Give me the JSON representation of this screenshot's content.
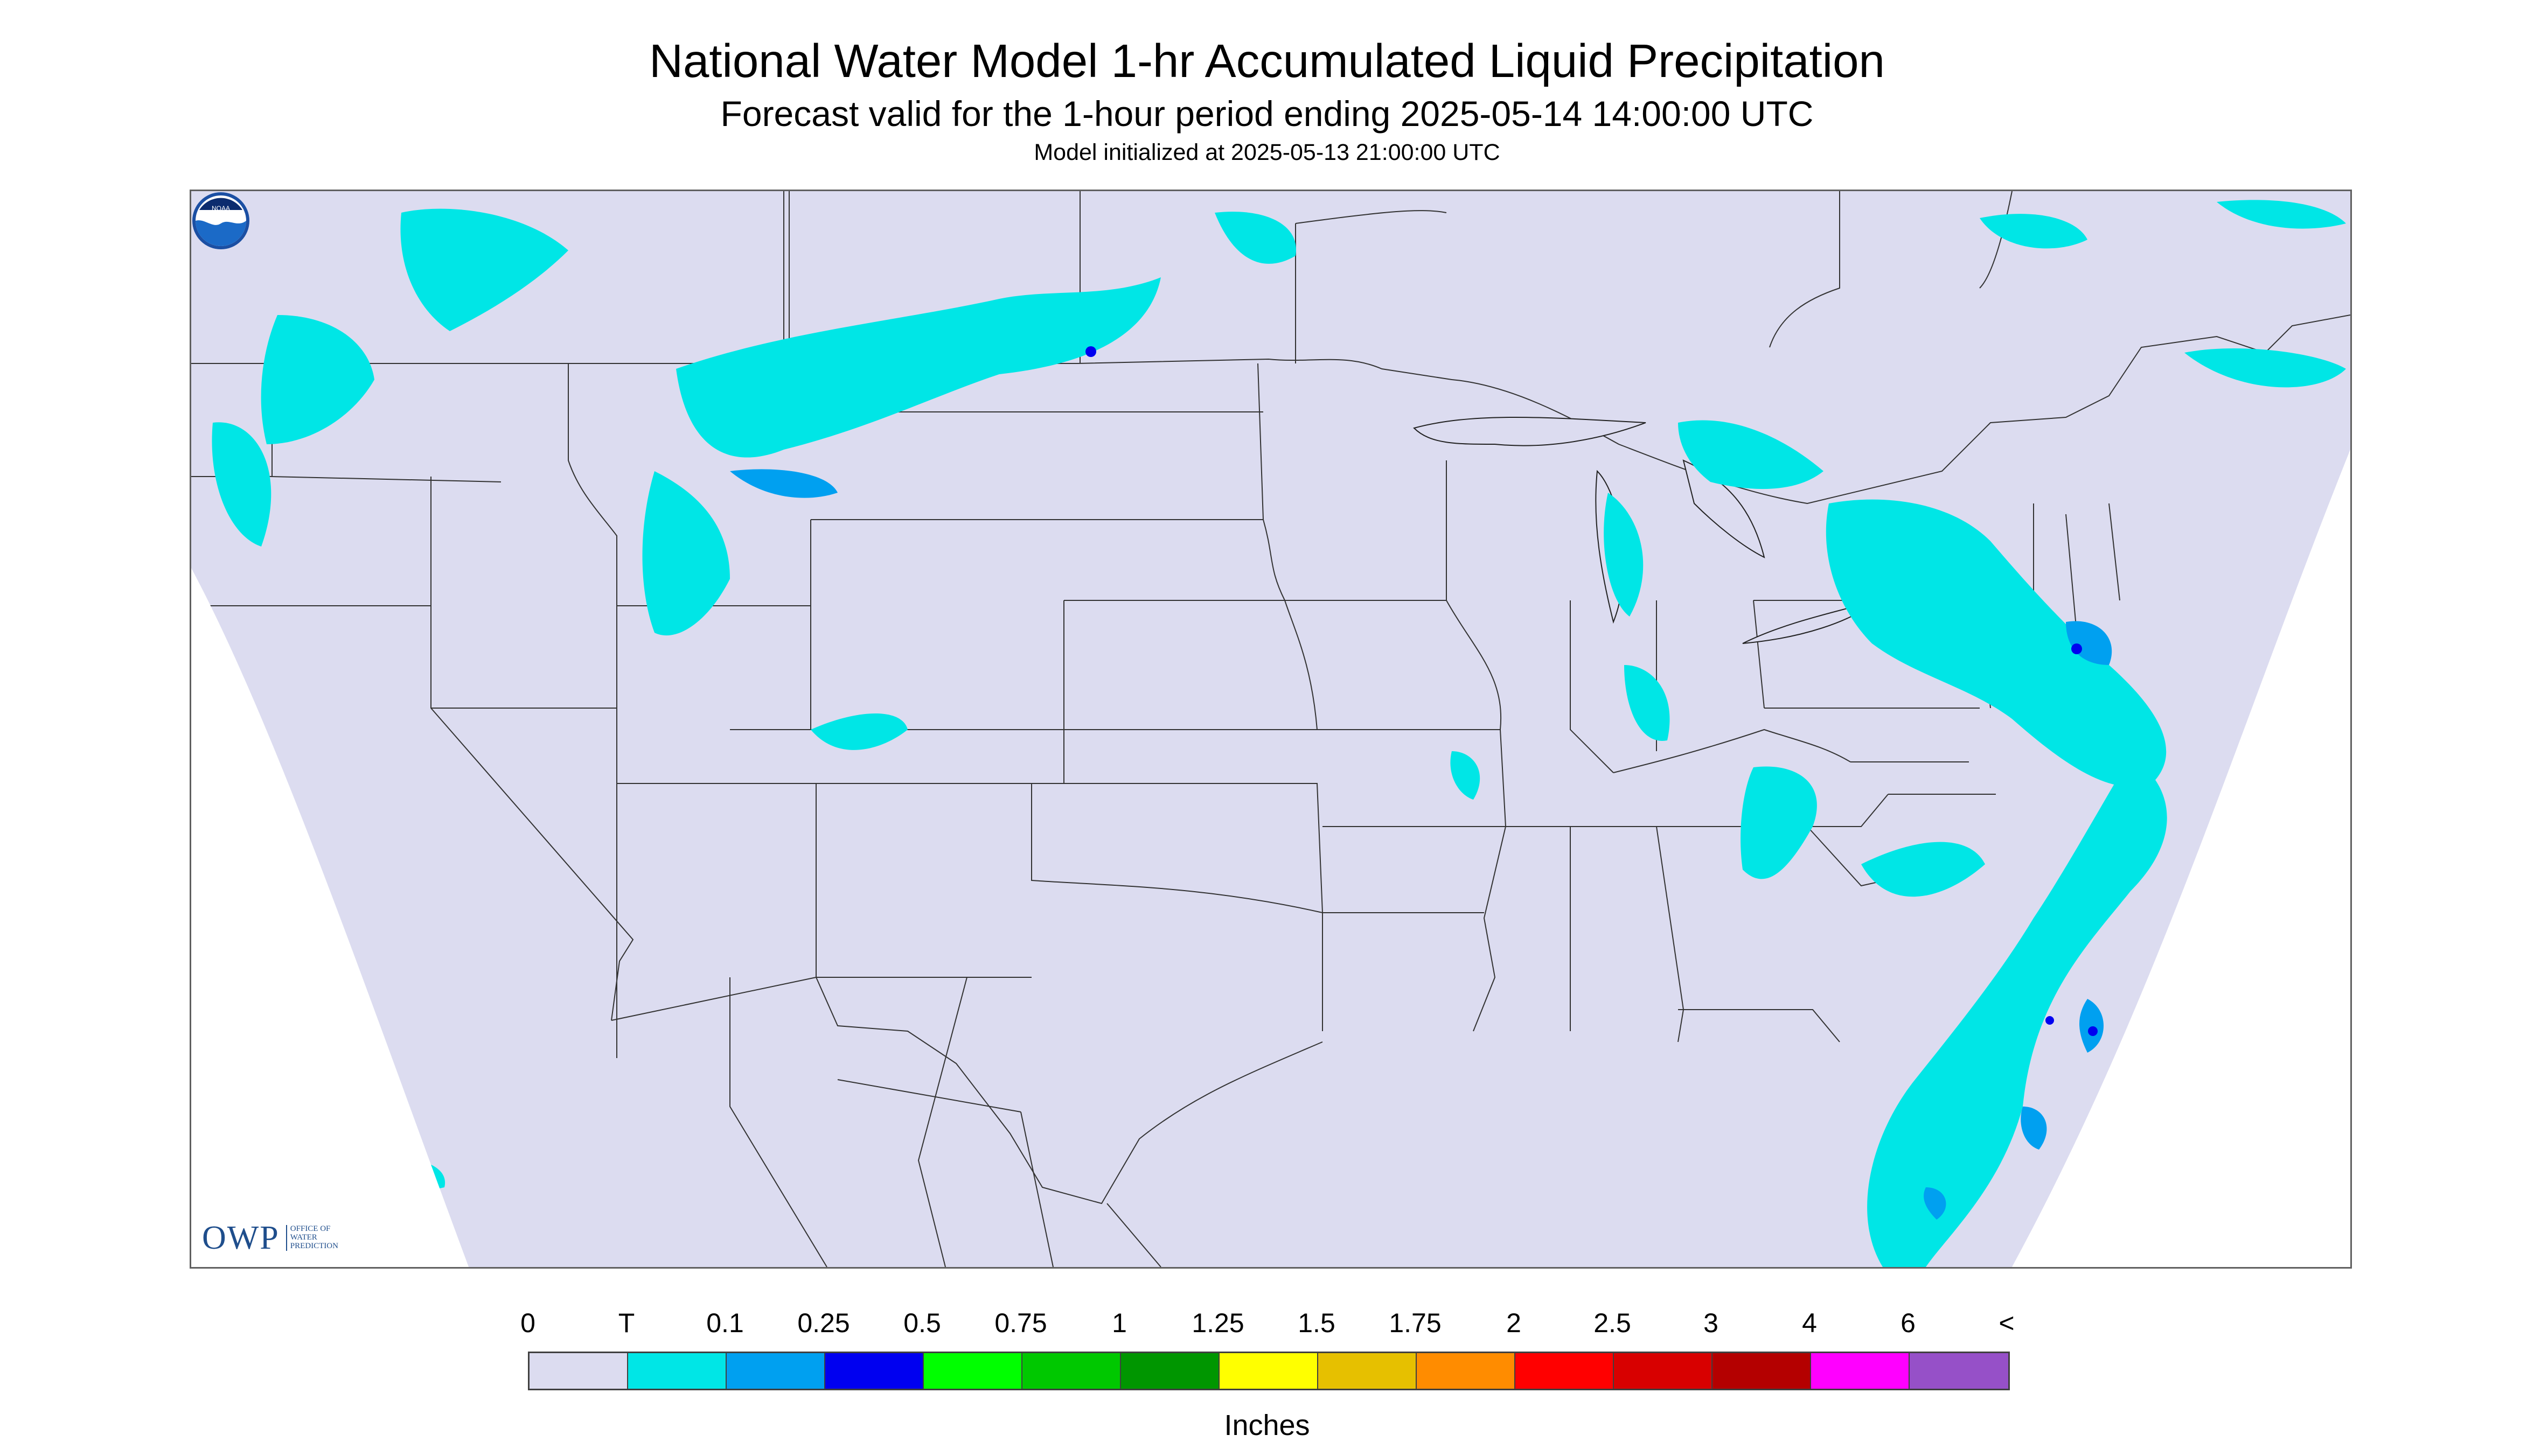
{
  "title": "National Water Model 1-hr Accumulated Liquid Precipitation",
  "subtitle": "Forecast valid for the 1-hour period ending 2025-05-14 14:00:00 UTC",
  "init_text": "Model initialized at 2025-05-13 21:00:00 UTC",
  "logos": {
    "owp_main": "OWP",
    "owp_sub_lines": [
      "OFFICE OF",
      "WATER",
      "PREDICTION"
    ],
    "noaa": "NOAA"
  },
  "legend": {
    "labels": [
      "0",
      "T",
      "0.1",
      "0.25",
      "0.5",
      "0.75",
      "1",
      "1.25",
      "1.5",
      "1.75",
      "2",
      "2.5",
      "3",
      "4",
      "6",
      "<"
    ],
    "colors": [
      "#dcdcf0",
      "#00e6e6",
      "#00a0f0",
      "#0000f0",
      "#00ff00",
      "#00c800",
      "#009600",
      "#ffff00",
      "#e6c000",
      "#ff8c00",
      "#ff0000",
      "#d80000",
      "#b40000",
      "#ff00ff",
      "#9650c8"
    ],
    "units": "Inches"
  },
  "map": {
    "domain_fill": "#dcdcf0",
    "outside_fill": "#ffffff",
    "precip_trace_color": "#00e6e6",
    "precip_01_color": "#00a0f0",
    "precip_025_color": "#0000f0"
  }
}
